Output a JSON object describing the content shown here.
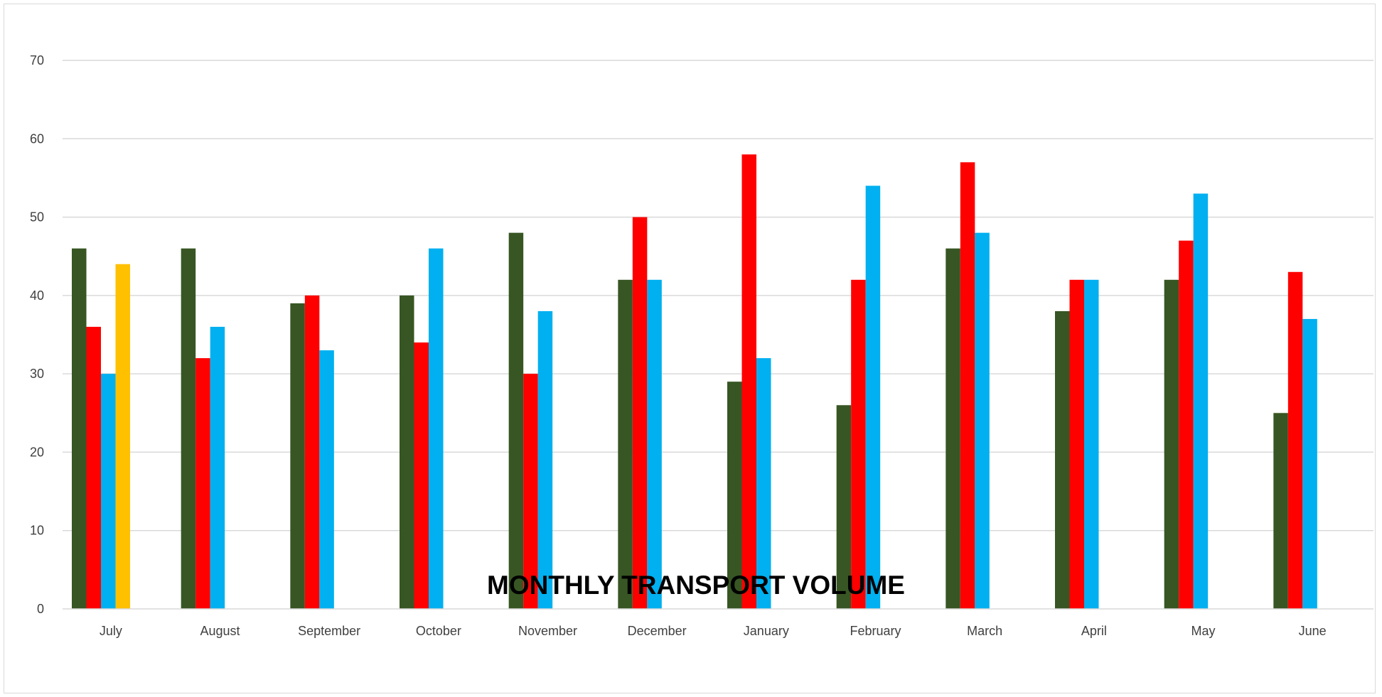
{
  "chart_data": {
    "type": "bar",
    "title": "MONTHLY TRANSPORT VOLUME",
    "xlabel": "",
    "ylabel": "",
    "ylim": [
      0,
      70
    ],
    "yticks": [
      0,
      10,
      20,
      30,
      40,
      50,
      60,
      70
    ],
    "grid": true,
    "legend": "none",
    "categories": [
      "July",
      "August",
      "September",
      "October",
      "November",
      "December",
      "January",
      "February",
      "March",
      "April",
      "May",
      "June"
    ],
    "series": [
      {
        "color": "#375623",
        "values": [
          46,
          46,
          39,
          40,
          48,
          42,
          29,
          26,
          46,
          38,
          42,
          25
        ]
      },
      {
        "color": "#FF0000",
        "values": [
          36,
          32,
          40,
          34,
          30,
          50,
          58,
          42,
          57,
          42,
          47,
          43
        ]
      },
      {
        "color": "#00B0F0",
        "values": [
          30,
          36,
          33,
          46,
          38,
          42,
          32,
          54,
          48,
          42,
          53,
          37
        ]
      },
      {
        "color": "#FFC000",
        "values": [
          44,
          null,
          null,
          null,
          null,
          null,
          null,
          null,
          null,
          null,
          null,
          null
        ]
      }
    ]
  }
}
